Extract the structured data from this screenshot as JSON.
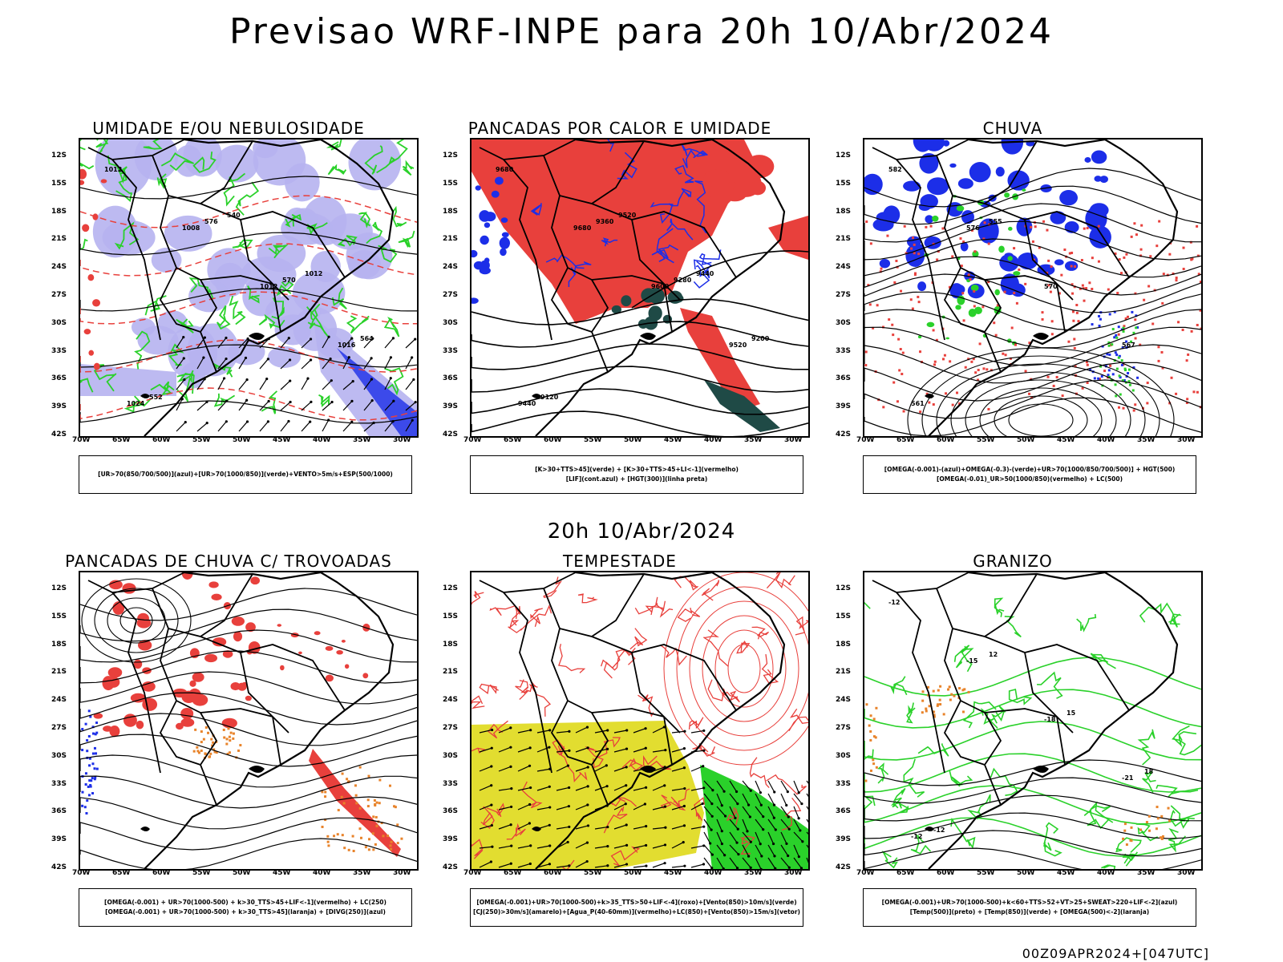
{
  "title": "Previsao WRF-INPE  para 20h 10/Abr/2024",
  "subtitle": "20h 10/Abr/2024",
  "footer": "00Z09APR2024+[047UTC]",
  "lat_labels": [
    "12S",
    "15S",
    "18S",
    "21S",
    "24S",
    "27S",
    "30S",
    "33S",
    "36S",
    "39S",
    "42S"
  ],
  "lon_labels": [
    "70W",
    "65W",
    "60W",
    "55W",
    "50W",
    "45W",
    "40W",
    "35W",
    "30W"
  ],
  "colors": {
    "red": "#e8403c",
    "blue": "#1c2ee8",
    "green": "#2ad12a",
    "lavender": "#b6b2f0",
    "yellow": "#e2dd30",
    "darkgreen": "#1f4a46",
    "orange": "#e8832a"
  },
  "panels": [
    {
      "title": "UMIDADE E/OU NEBULOSIDADE",
      "legend": [
        "[UR>70(850/700/500)](azul)+[UR>70(1000/850)](verde)+VENTO>5m/s+ESP(500/1000)"
      ],
      "labels": [
        "1012",
        "1008",
        "1012",
        "1016",
        "1024",
        "576",
        "570",
        "564",
        "552",
        "540",
        "1012"
      ]
    },
    {
      "title": "PANCADAS POR CALOR E UMIDADE",
      "legend": [
        "[K>30+TTS>45](verde) + [K>30+TTS>45+LI<-1](vermelho)",
        "[LIF](cont.azul) + [HGT(300)](linha preta)"
      ],
      "labels": [
        "9680",
        "9680",
        "9600",
        "9520",
        "9440",
        "9360",
        "9280",
        "9200",
        "9120",
        "9520",
        "9440"
      ]
    },
    {
      "title": "CHUVA",
      "legend": [
        "[OMEGA(-0.001)-(azul)+OMEGA(-0.3)-(verde)+UR>70(1000/850/700/500)] + HGT(500)",
        "[OMEGA(-0.01)_UR>50(1000/850)(vermelho) + LC(500)"
      ],
      "labels": [
        "582",
        "576",
        "570",
        "567",
        "561",
        "555"
      ]
    },
    {
      "title": "PANCADAS DE CHUVA C/ TROVOADAS",
      "legend": [
        "[OMEGA(-0.001) + UR>70(1000-500) + k>30_TTS>45+LIF<-1](vermelho) + LC(250)",
        "[OMEGA(-0.001) + UR>70(1000-500) + k>30_TTS>45](laranja) + [DIVG(250)](azul)"
      ],
      "labels": []
    },
    {
      "title": "TEMPESTADE",
      "legend": [
        "[OMEGA(-0.001)+UR>70(1000-500)+k>35_TTS>50+LIF<-4](roxo)+[Vento(850)>10m/s](verde)",
        "[CJ(250)>30m/s](amarelo)+[Agua_P(40-60mm)](vermelho)+LC(850)+[Vento(850)>15m/s](vetor)"
      ],
      "labels": []
    },
    {
      "title": "GRANIZO",
      "legend": [
        "[OMEGA(-0.001)+UR>70(1000-500)+k<60+TTS>52+VT>25+SWEAT>220+LIF<-2](azul)",
        "[Temp(500)](preto) + [Temp(850)](verde) + [OMEGA(500)<-2](laranja)"
      ],
      "labels": [
        "-12",
        "-15",
        "-18",
        "-21",
        "-12",
        "12",
        "15",
        "18",
        "-12"
      ]
    }
  ]
}
